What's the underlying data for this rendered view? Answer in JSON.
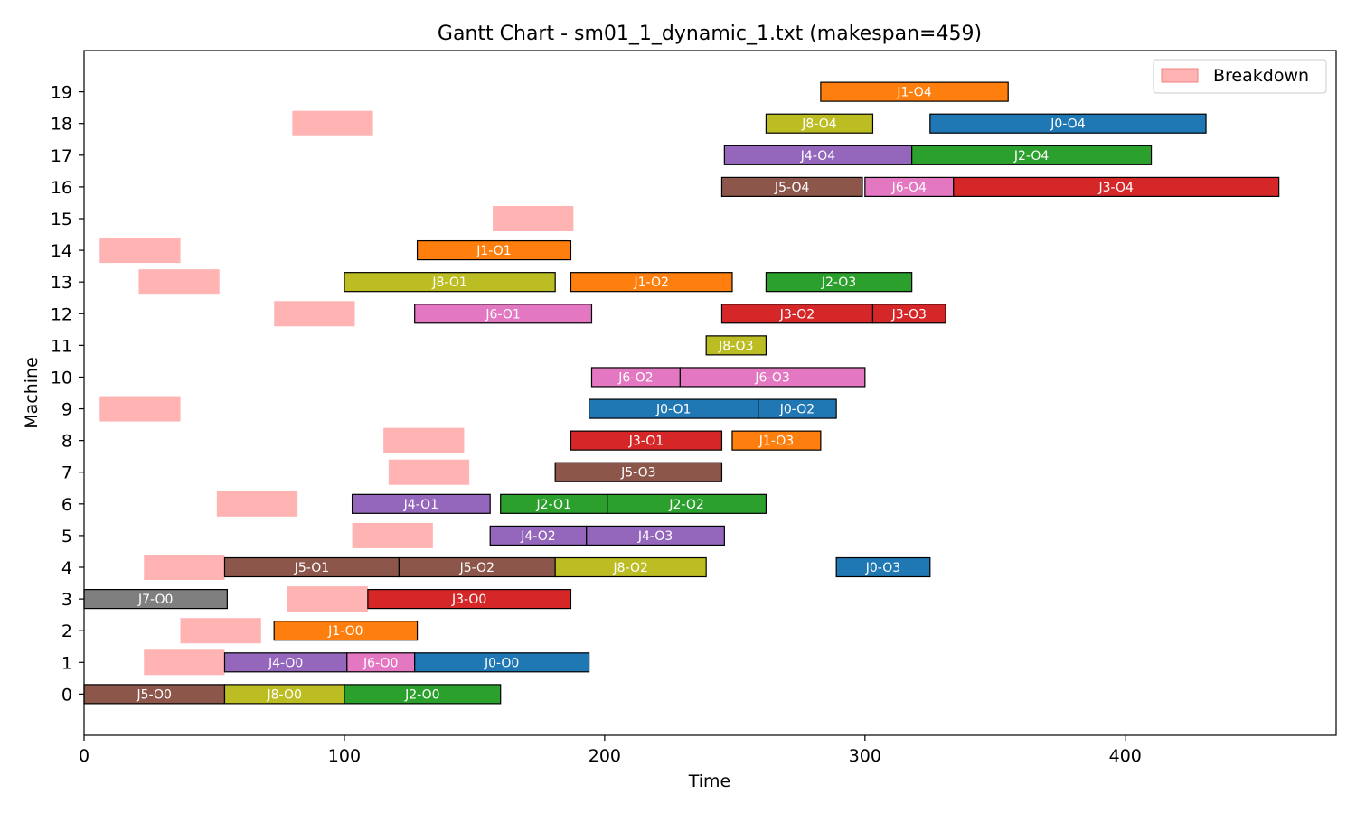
{
  "chart_data": {
    "type": "gantt",
    "title": "Gantt Chart - sm01_1_dynamic_1.txt (makespan=459)",
    "xlabel": "Time",
    "ylabel": "Machine",
    "xlim": [
      0,
      481
    ],
    "ylim": [
      -1.3,
      20.3
    ],
    "x_ticks": [
      0,
      100,
      200,
      300,
      400
    ],
    "y_ticks": [
      0,
      1,
      2,
      3,
      4,
      5,
      6,
      7,
      8,
      9,
      10,
      11,
      12,
      13,
      14,
      15,
      16,
      17,
      18,
      19
    ],
    "legend": {
      "position": "top-right",
      "entries": [
        {
          "label": "Breakdown",
          "color": "#ffb3b3"
        }
      ]
    },
    "job_colors": {
      "J0": "#1f77b4",
      "J1": "#ff7f0e",
      "J2": "#2ca02c",
      "J3": "#d62728",
      "J4": "#9467bd",
      "J5": "#8c564b",
      "J6": "#e377c2",
      "J7": "#7f7f7f",
      "J8": "#bcbd22"
    },
    "breakdown_color": "#ffb3b3",
    "breakdowns": [
      {
        "machine": 18,
        "start": 80,
        "end": 111
      },
      {
        "machine": 15,
        "start": 157,
        "end": 188
      },
      {
        "machine": 14,
        "start": 6,
        "end": 37
      },
      {
        "machine": 13,
        "start": 21,
        "end": 52
      },
      {
        "machine": 12,
        "start": 73,
        "end": 104
      },
      {
        "machine": 9,
        "start": 6,
        "end": 37
      },
      {
        "machine": 8,
        "start": 115,
        "end": 146
      },
      {
        "machine": 7,
        "start": 117,
        "end": 148
      },
      {
        "machine": 6,
        "start": 51,
        "end": 82
      },
      {
        "machine": 5,
        "start": 103,
        "end": 134
      },
      {
        "machine": 4,
        "start": 23,
        "end": 54
      },
      {
        "machine": 3,
        "start": 78,
        "end": 109
      },
      {
        "machine": 2,
        "start": 37,
        "end": 68
      },
      {
        "machine": 1,
        "start": 23,
        "end": 54
      }
    ],
    "operations": [
      {
        "label": "J1-O4",
        "job": "J1",
        "machine": 19,
        "start": 283,
        "end": 355
      },
      {
        "label": "J8-O4",
        "job": "J8",
        "machine": 18,
        "start": 262,
        "end": 303
      },
      {
        "label": "J0-O4",
        "job": "J0",
        "machine": 18,
        "start": 325,
        "end": 431
      },
      {
        "label": "J4-O4",
        "job": "J4",
        "machine": 17,
        "start": 246,
        "end": 318
      },
      {
        "label": "J2-O4",
        "job": "J2",
        "machine": 17,
        "start": 318,
        "end": 410
      },
      {
        "label": "J5-O4",
        "job": "J5",
        "machine": 16,
        "start": 245,
        "end": 299
      },
      {
        "label": "J6-O4",
        "job": "J6",
        "machine": 16,
        "start": 300,
        "end": 334
      },
      {
        "label": "J3-O4",
        "job": "J3",
        "machine": 16,
        "start": 334,
        "end": 459
      },
      {
        "label": "J1-O1",
        "job": "J1",
        "machine": 14,
        "start": 128,
        "end": 187
      },
      {
        "label": "J8-O1",
        "job": "J8",
        "machine": 13,
        "start": 100,
        "end": 181
      },
      {
        "label": "J1-O2",
        "job": "J1",
        "machine": 13,
        "start": 187,
        "end": 249
      },
      {
        "label": "J2-O3",
        "job": "J2",
        "machine": 13,
        "start": 262,
        "end": 318
      },
      {
        "label": "J6-O1",
        "job": "J6",
        "machine": 12,
        "start": 127,
        "end": 195
      },
      {
        "label": "J3-O2",
        "job": "J3",
        "machine": 12,
        "start": 245,
        "end": 303
      },
      {
        "label": "J3-O3",
        "job": "J3",
        "machine": 12,
        "start": 303,
        "end": 331
      },
      {
        "label": "J8-O3",
        "job": "J8",
        "machine": 11,
        "start": 239,
        "end": 262
      },
      {
        "label": "J6-O2",
        "job": "J6",
        "machine": 10,
        "start": 195,
        "end": 229
      },
      {
        "label": "J6-O3",
        "job": "J6",
        "machine": 10,
        "start": 229,
        "end": 300
      },
      {
        "label": "J0-O1",
        "job": "J0",
        "machine": 9,
        "start": 194,
        "end": 259
      },
      {
        "label": "J0-O2",
        "job": "J0",
        "machine": 9,
        "start": 259,
        "end": 289
      },
      {
        "label": "J3-O1",
        "job": "J3",
        "machine": 8,
        "start": 187,
        "end": 245
      },
      {
        "label": "J1-O3",
        "job": "J1",
        "machine": 8,
        "start": 249,
        "end": 283
      },
      {
        "label": "J5-O3",
        "job": "J5",
        "machine": 7,
        "start": 181,
        "end": 245
      },
      {
        "label": "J4-O1",
        "job": "J4",
        "machine": 6,
        "start": 103,
        "end": 156
      },
      {
        "label": "J2-O1",
        "job": "J2",
        "machine": 6,
        "start": 160,
        "end": 201
      },
      {
        "label": "J2-O2",
        "job": "J2",
        "machine": 6,
        "start": 201,
        "end": 262
      },
      {
        "label": "J4-O2",
        "job": "J4",
        "machine": 5,
        "start": 156,
        "end": 193
      },
      {
        "label": "J4-O3",
        "job": "J4",
        "machine": 5,
        "start": 193,
        "end": 246
      },
      {
        "label": "J5-O1",
        "job": "J5",
        "machine": 4,
        "start": 54,
        "end": 121
      },
      {
        "label": "J5-O2",
        "job": "J5",
        "machine": 4,
        "start": 121,
        "end": 181
      },
      {
        "label": "J8-O2",
        "job": "J8",
        "machine": 4,
        "start": 181,
        "end": 239
      },
      {
        "label": "J0-O3",
        "job": "J0",
        "machine": 4,
        "start": 289,
        "end": 325
      },
      {
        "label": "J7-O0",
        "job": "J7",
        "machine": 3,
        "start": 0,
        "end": 55
      },
      {
        "label": "J3-O0",
        "job": "J3",
        "machine": 3,
        "start": 109,
        "end": 187
      },
      {
        "label": "J1-O0",
        "job": "J1",
        "machine": 2,
        "start": 73,
        "end": 128
      },
      {
        "label": "J4-O0",
        "job": "J4",
        "machine": 1,
        "start": 54,
        "end": 101
      },
      {
        "label": "J6-O0",
        "job": "J6",
        "machine": 1,
        "start": 101,
        "end": 127
      },
      {
        "label": "J0-O0",
        "job": "J0",
        "machine": 1,
        "start": 127,
        "end": 194
      },
      {
        "label": "J5-O0",
        "job": "J5",
        "machine": 0,
        "start": 0,
        "end": 54
      },
      {
        "label": "J8-O0",
        "job": "J8",
        "machine": 0,
        "start": 54,
        "end": 100
      },
      {
        "label": "J2-O0",
        "job": "J2",
        "machine": 0,
        "start": 100,
        "end": 160
      }
    ]
  }
}
